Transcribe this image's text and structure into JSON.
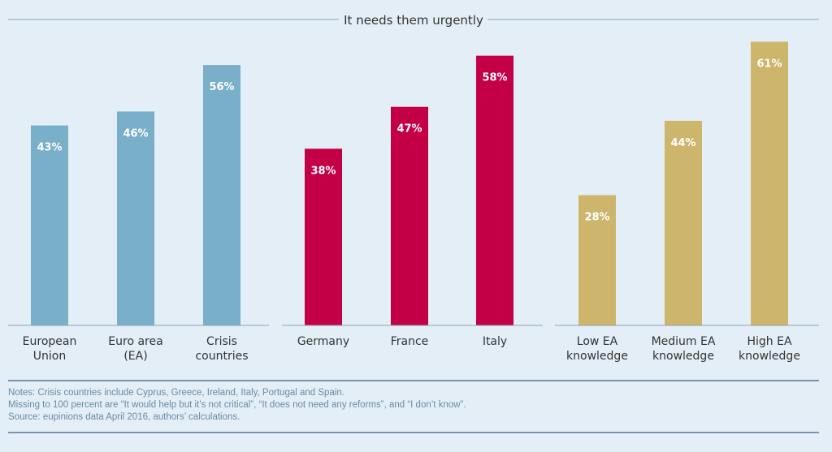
{
  "chart_data": {
    "type": "bar",
    "title": "It needs them urgently",
    "ylim": [
      0,
      63
    ],
    "groups": [
      {
        "color": "#7aafca",
        "bars": [
          {
            "label": [
              "European",
              "Union"
            ],
            "value": 43,
            "display": "43%"
          },
          {
            "label": [
              "Euro area",
              "(EA)"
            ],
            "value": 46,
            "display": "46%"
          },
          {
            "label": [
              "Crisis",
              "countries"
            ],
            "value": 56,
            "display": "56%"
          }
        ]
      },
      {
        "color": "#c30046",
        "bars": [
          {
            "label": [
              "Germany"
            ],
            "value": 38,
            "display": "38%"
          },
          {
            "label": [
              "France"
            ],
            "value": 47,
            "display": "47%"
          },
          {
            "label": [
              "Italy"
            ],
            "value": 58,
            "display": "58%"
          }
        ]
      },
      {
        "color": "#cdb56c",
        "bars": [
          {
            "label": [
              "Low EA",
              "knowledge"
            ],
            "value": 28,
            "display": "28%"
          },
          {
            "label": [
              "Medium EA",
              "knowledge"
            ],
            "value": 44,
            "display": "44%"
          },
          {
            "label": [
              "High EA",
              "knowledge"
            ],
            "value": 61,
            "display": "61%"
          }
        ]
      }
    ],
    "colors": {
      "background": "#e3eef6",
      "axis": "#8fa3b3",
      "rule": "#3a5f86",
      "text": "#333333",
      "notes": "#6a8ba3",
      "value_label": "#ffffff"
    }
  },
  "notes": [
    "Notes: Crisis countries include Cyprus, Greece, Ireland, Italy, Portugal and Spain.",
    "Missing to 100 percent are “It would help but it’s not critical”, “It does not need any reforms”, and “I don’t know”.",
    "Source: eupinions data April 2016, authors’ calculations."
  ]
}
